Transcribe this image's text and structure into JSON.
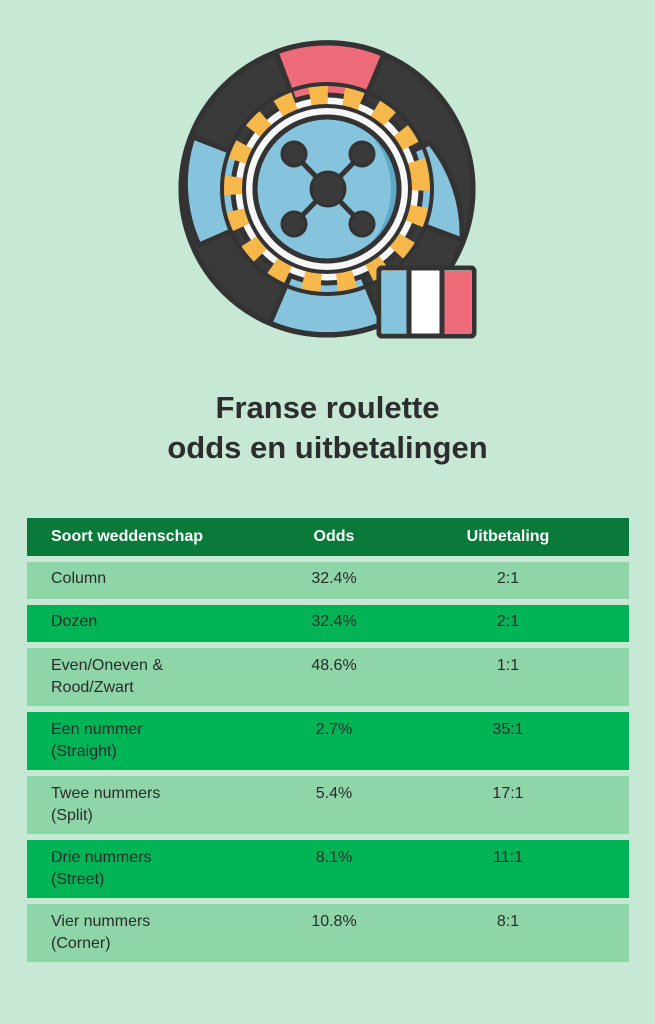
{
  "title": {
    "line1": "Franse roulette",
    "line2": "odds en uitbetalingen"
  },
  "colors": {
    "background": "#c6e8d4",
    "header": "#0a7a3a",
    "row_light": "#8ed6a8",
    "row_dark": "#00b354"
  },
  "illustration": {
    "icon": "roulette-wheel-icon",
    "flag_icon": "french-flag-icon"
  },
  "table": {
    "headers": [
      "Soort weddenschap",
      "Odds",
      "Uitbetaling"
    ],
    "rows": [
      {
        "label1": "Column",
        "label2": "",
        "odds": "32.4%",
        "payout": "2:1"
      },
      {
        "label1": "Dozen",
        "label2": "",
        "odds": "32.4%",
        "payout": "2:1"
      },
      {
        "label1": "Even/Oneven &",
        "label2": "Rood/Zwart",
        "odds": "48.6%",
        "payout": "1:1"
      },
      {
        "label1": "Een nummer",
        "label2": "(Straight)",
        "odds": "2.7%",
        "payout": "35:1"
      },
      {
        "label1": "Twee nummers",
        "label2": "(Split)",
        "odds": "5.4%",
        "payout": "17:1"
      },
      {
        "label1": "Drie nummers",
        "label2": "(Street)",
        "odds": "8.1%",
        "payout": "11:1"
      },
      {
        "label1": "Vier nummers",
        "label2": "(Corner)",
        "odds": "10.8%",
        "payout": "8:1"
      }
    ]
  }
}
